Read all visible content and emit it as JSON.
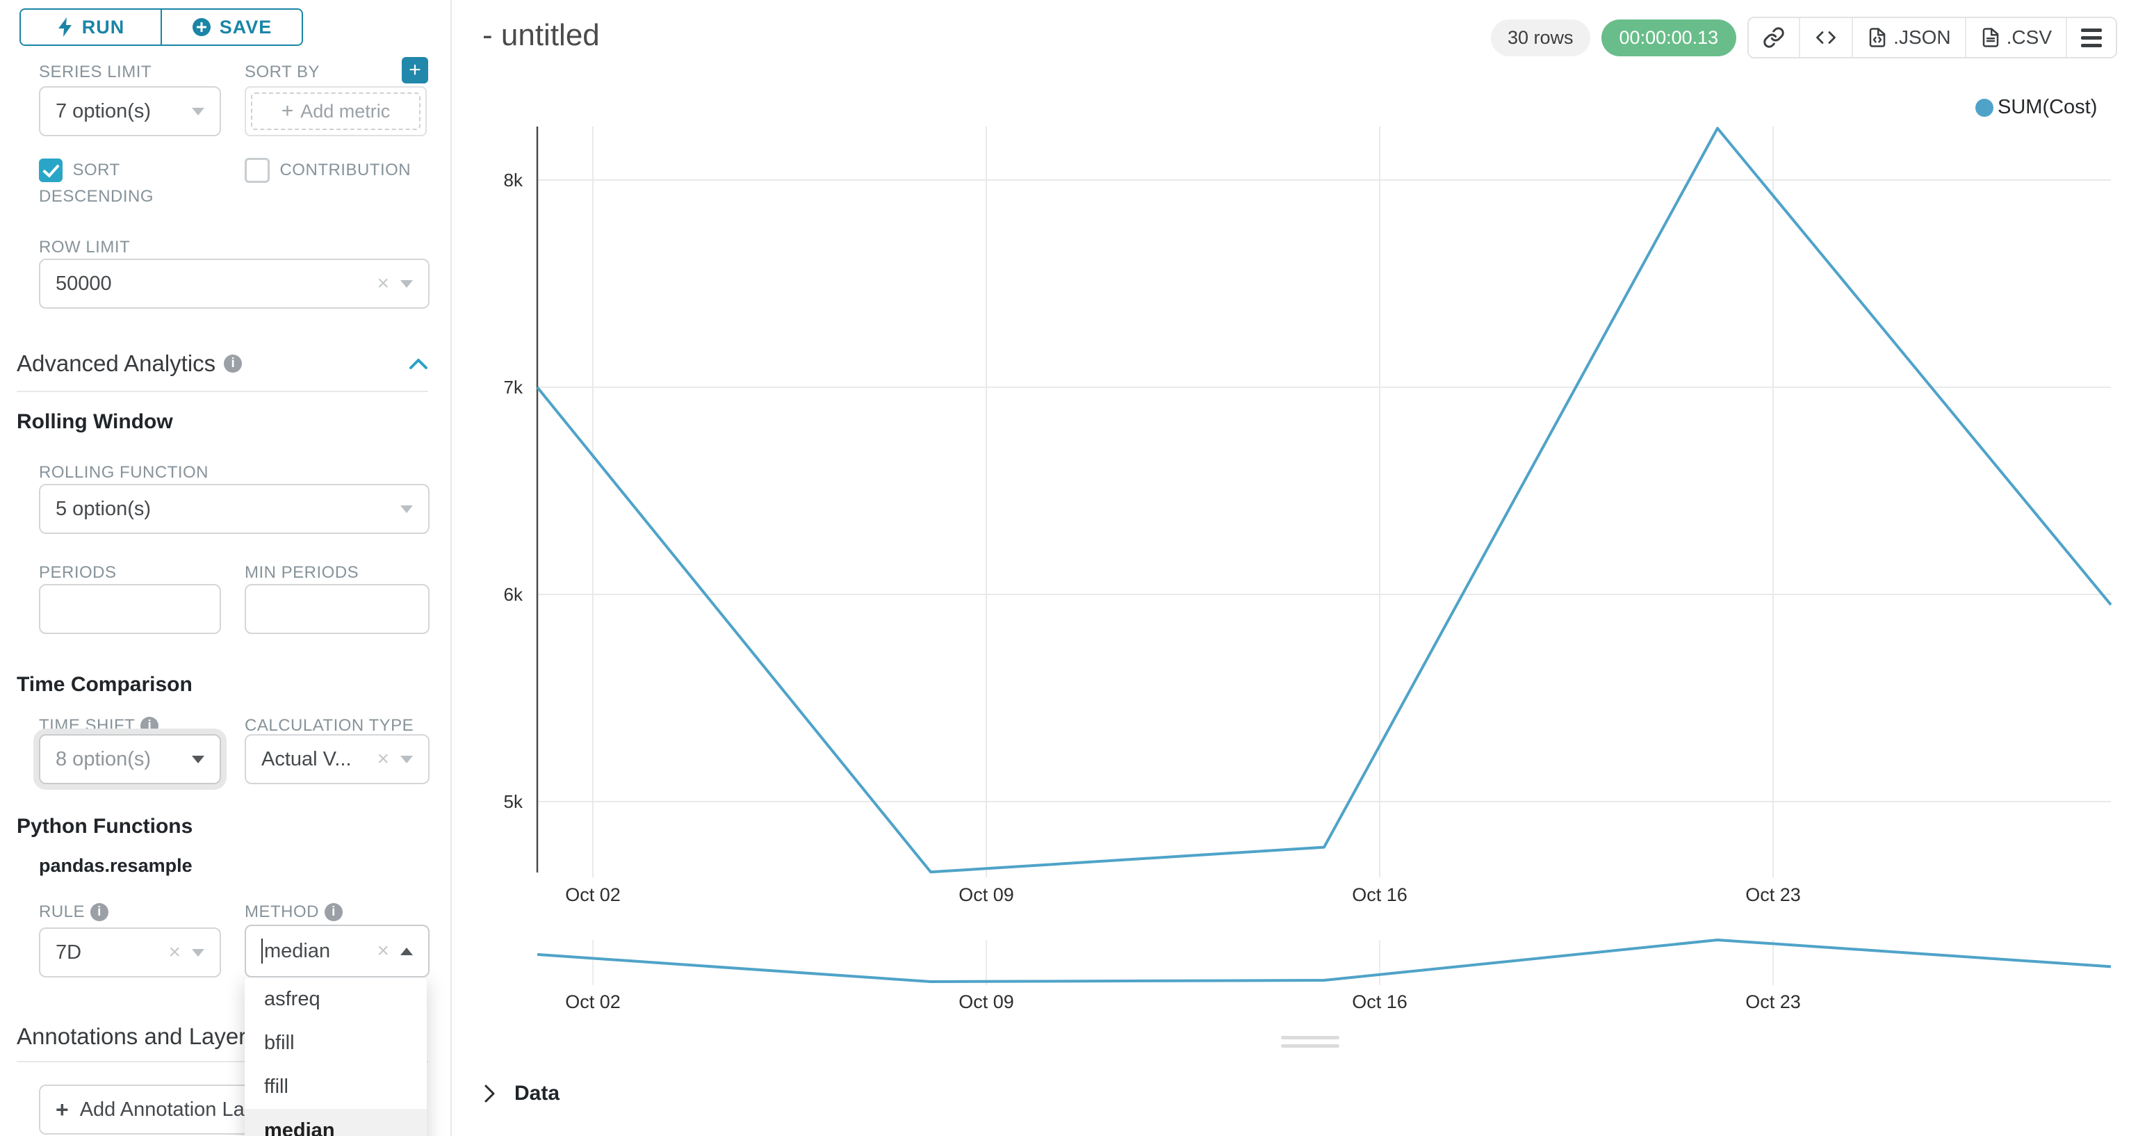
{
  "colors": {
    "primary": "#20a7c9",
    "primary_dark": "#1a85a6",
    "line": "#4fa3c8",
    "timer_green": "#69bd8a",
    "label_gray": "#87939a"
  },
  "icons": {
    "run": "lightning-icon",
    "save": "plus-circle-icon",
    "add_metric_tile": "plus-icon",
    "info": "info-circle-icon",
    "collapse": "chevron-up-icon",
    "share": "link-icon",
    "embed": "code-icon",
    "json_export": "file-code-icon",
    "csv_export": "file-text-icon",
    "more": "hamburger-menu-icon",
    "data_expand": "chevron-right-icon"
  },
  "sidebar": {
    "run_label": "RUN",
    "save_label": "SAVE",
    "series_limit": {
      "label": "SERIES LIMIT",
      "value": "7 option(s)"
    },
    "sort_by": {
      "label": "SORT BY",
      "placeholder": "Add metric"
    },
    "sort_descending": {
      "label": "SORT DESCENDING",
      "checked": true
    },
    "contribution": {
      "label": "CONTRIBUTION",
      "checked": false
    },
    "row_limit": {
      "label": "ROW LIMIT",
      "value": "50000"
    },
    "advanced_analytics": {
      "title": "Advanced Analytics"
    },
    "rolling_window": {
      "title": "Rolling Window",
      "rolling_function": {
        "label": "ROLLING FUNCTION",
        "value": "5 option(s)"
      },
      "periods": {
        "label": "PERIODS",
        "value": ""
      },
      "min_periods": {
        "label": "MIN PERIODS",
        "value": ""
      }
    },
    "time_comparison": {
      "title": "Time Comparison",
      "time_shift": {
        "label": "TIME SHIFT",
        "value": "8 option(s)"
      },
      "calculation_type": {
        "label": "CALCULATION TYPE",
        "value": "Actual V..."
      }
    },
    "python_functions": {
      "title": "Python Functions",
      "subtitle": "pandas.resample",
      "rule": {
        "label": "RULE",
        "value": "7D"
      },
      "method": {
        "label": "METHOD",
        "value": "median",
        "options": [
          "asfreq",
          "bfill",
          "ffill",
          "median"
        ],
        "selected_option": "median"
      }
    },
    "annotations": {
      "title": "Annotations and Layers",
      "add_button": "Add Annotation Layer"
    }
  },
  "header": {
    "title": "- untitled",
    "rows_badge": "30 rows",
    "timer": "00:00:00.13",
    "export_json": ".JSON",
    "export_csv": ".CSV"
  },
  "data_panel": {
    "label": "Data"
  },
  "chart_data": {
    "type": "line",
    "title": "- untitled",
    "legend": {
      "label": "SUM(Cost)",
      "position": "top-right",
      "color": "#4fa3c8"
    },
    "series": [
      {
        "name": "SUM(Cost)",
        "x": [
          "Oct 01",
          "Oct 08",
          "Oct 15",
          "Oct 22",
          "Oct 29"
        ],
        "values": [
          7000,
          4660,
          4780,
          8250,
          5950
        ]
      }
    ],
    "x_tick_labels": [
      "Oct 02",
      "Oct 09",
      "Oct 16",
      "Oct 23"
    ],
    "y_tick_labels": [
      "8k",
      "7k",
      "6k",
      "5k"
    ],
    "y_tick_values": [
      8000,
      7000,
      6000,
      5000
    ],
    "ylim": [
      4660,
      8250
    ],
    "grid": true,
    "has_mini_preview": true
  }
}
